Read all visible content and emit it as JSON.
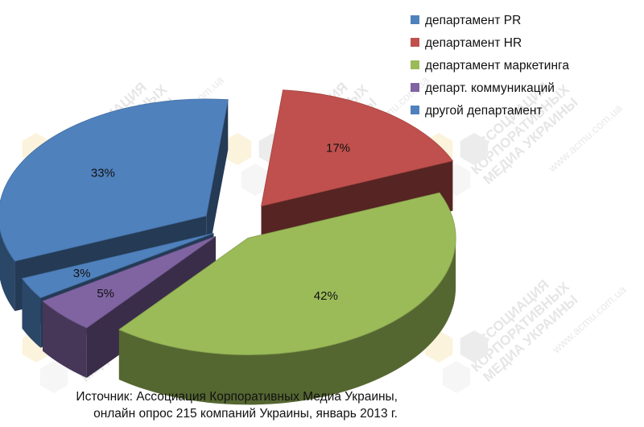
{
  "chart_data": {
    "type": "pie",
    "style": "3d-exploded",
    "labels": [
      "департамент PR",
      "департамент HR",
      "департамент маркетинга",
      "департ. коммуникаций",
      "другой департамент"
    ],
    "values": [
      33,
      17,
      42,
      5,
      3
    ],
    "slice_order_clockwise_from_top": [
      "департамент HR",
      "департамент маркетинга",
      "департ. коммуникаций",
      "другой департамент",
      "департамент PR"
    ],
    "data_labels": [
      "33%",
      "17%",
      "42%",
      "5%",
      "3%"
    ],
    "colors": [
      "#4f81bd",
      "#c0504d",
      "#9bbb59",
      "#8064a2",
      "#4f81bd"
    ],
    "legend_position": "top-right"
  },
  "watermark": {
    "logo_text": [
      "АССОЦИАЦИЯ",
      "КОРПОРАТИВНЫХ",
      "МЕДИА УКРАИНЫ"
    ],
    "url": "www.acmu.com.ua"
  },
  "source_note": {
    "line1": "Источник: Ассоциация Корпоративных Медиа Украины,",
    "line2": "онлайн опрос 215 компаний Украины, январь 2013 г."
  }
}
